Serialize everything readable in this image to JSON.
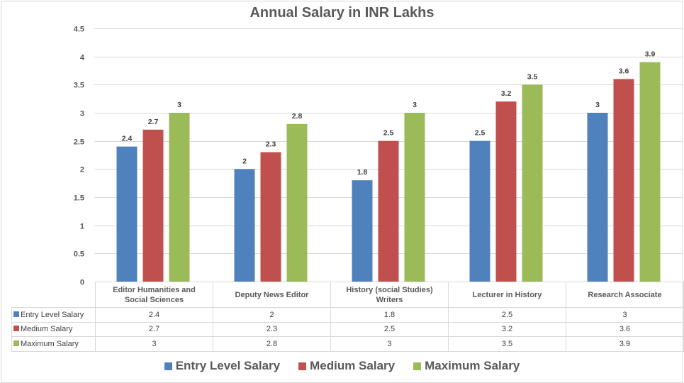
{
  "colors": {
    "entry": "#4f81bd",
    "medium": "#c0504d",
    "maximum": "#9bbb59",
    "grid": "#d9d9d9"
  },
  "chart_data": {
    "type": "bar",
    "title": "Annual Salary in INR Lakhs",
    "xlabel": "",
    "ylabel": "",
    "ylim": [
      0,
      4.5
    ],
    "yticks": [
      "0",
      "0.5",
      "1",
      "1.5",
      "2",
      "2.5",
      "3",
      "3.5",
      "4",
      "4.5"
    ],
    "ytick_values": [
      0,
      0.5,
      1,
      1.5,
      2,
      2.5,
      3,
      3.5,
      4,
      4.5
    ],
    "grid": true,
    "legend_position": "bottom",
    "categories": [
      "Editor  Humanities and Social Sciences",
      "Deputy News Editor",
      "History (social Studies) Writers",
      "Lecturer in History",
      "Research Associate"
    ],
    "category_lines": [
      [
        "Editor  Humanities and",
        "Social Sciences"
      ],
      [
        "Deputy News Editor"
      ],
      [
        "History (social Studies)",
        "Writers"
      ],
      [
        "Lecturer in History"
      ],
      [
        "Research Associate"
      ]
    ],
    "series": [
      {
        "name": "Entry Level Salary",
        "color": "#4f81bd",
        "values": [
          2.4,
          2,
          1.8,
          2.5,
          3
        ],
        "labels": [
          "2.4",
          "2",
          "1.8",
          "2.5",
          "3"
        ]
      },
      {
        "name": "Medium Salary",
        "color": "#c0504d",
        "values": [
          2.7,
          2.3,
          2.5,
          3.2,
          3.6
        ],
        "labels": [
          "2.7",
          "2.3",
          "2.5",
          "3.2",
          "3.6"
        ]
      },
      {
        "name": "Maximum Salary",
        "color": "#9bbb59",
        "values": [
          3,
          2.8,
          3,
          3.5,
          3.9
        ],
        "labels": [
          "3",
          "2.8",
          "3",
          "3.5",
          "3.9"
        ]
      }
    ]
  }
}
